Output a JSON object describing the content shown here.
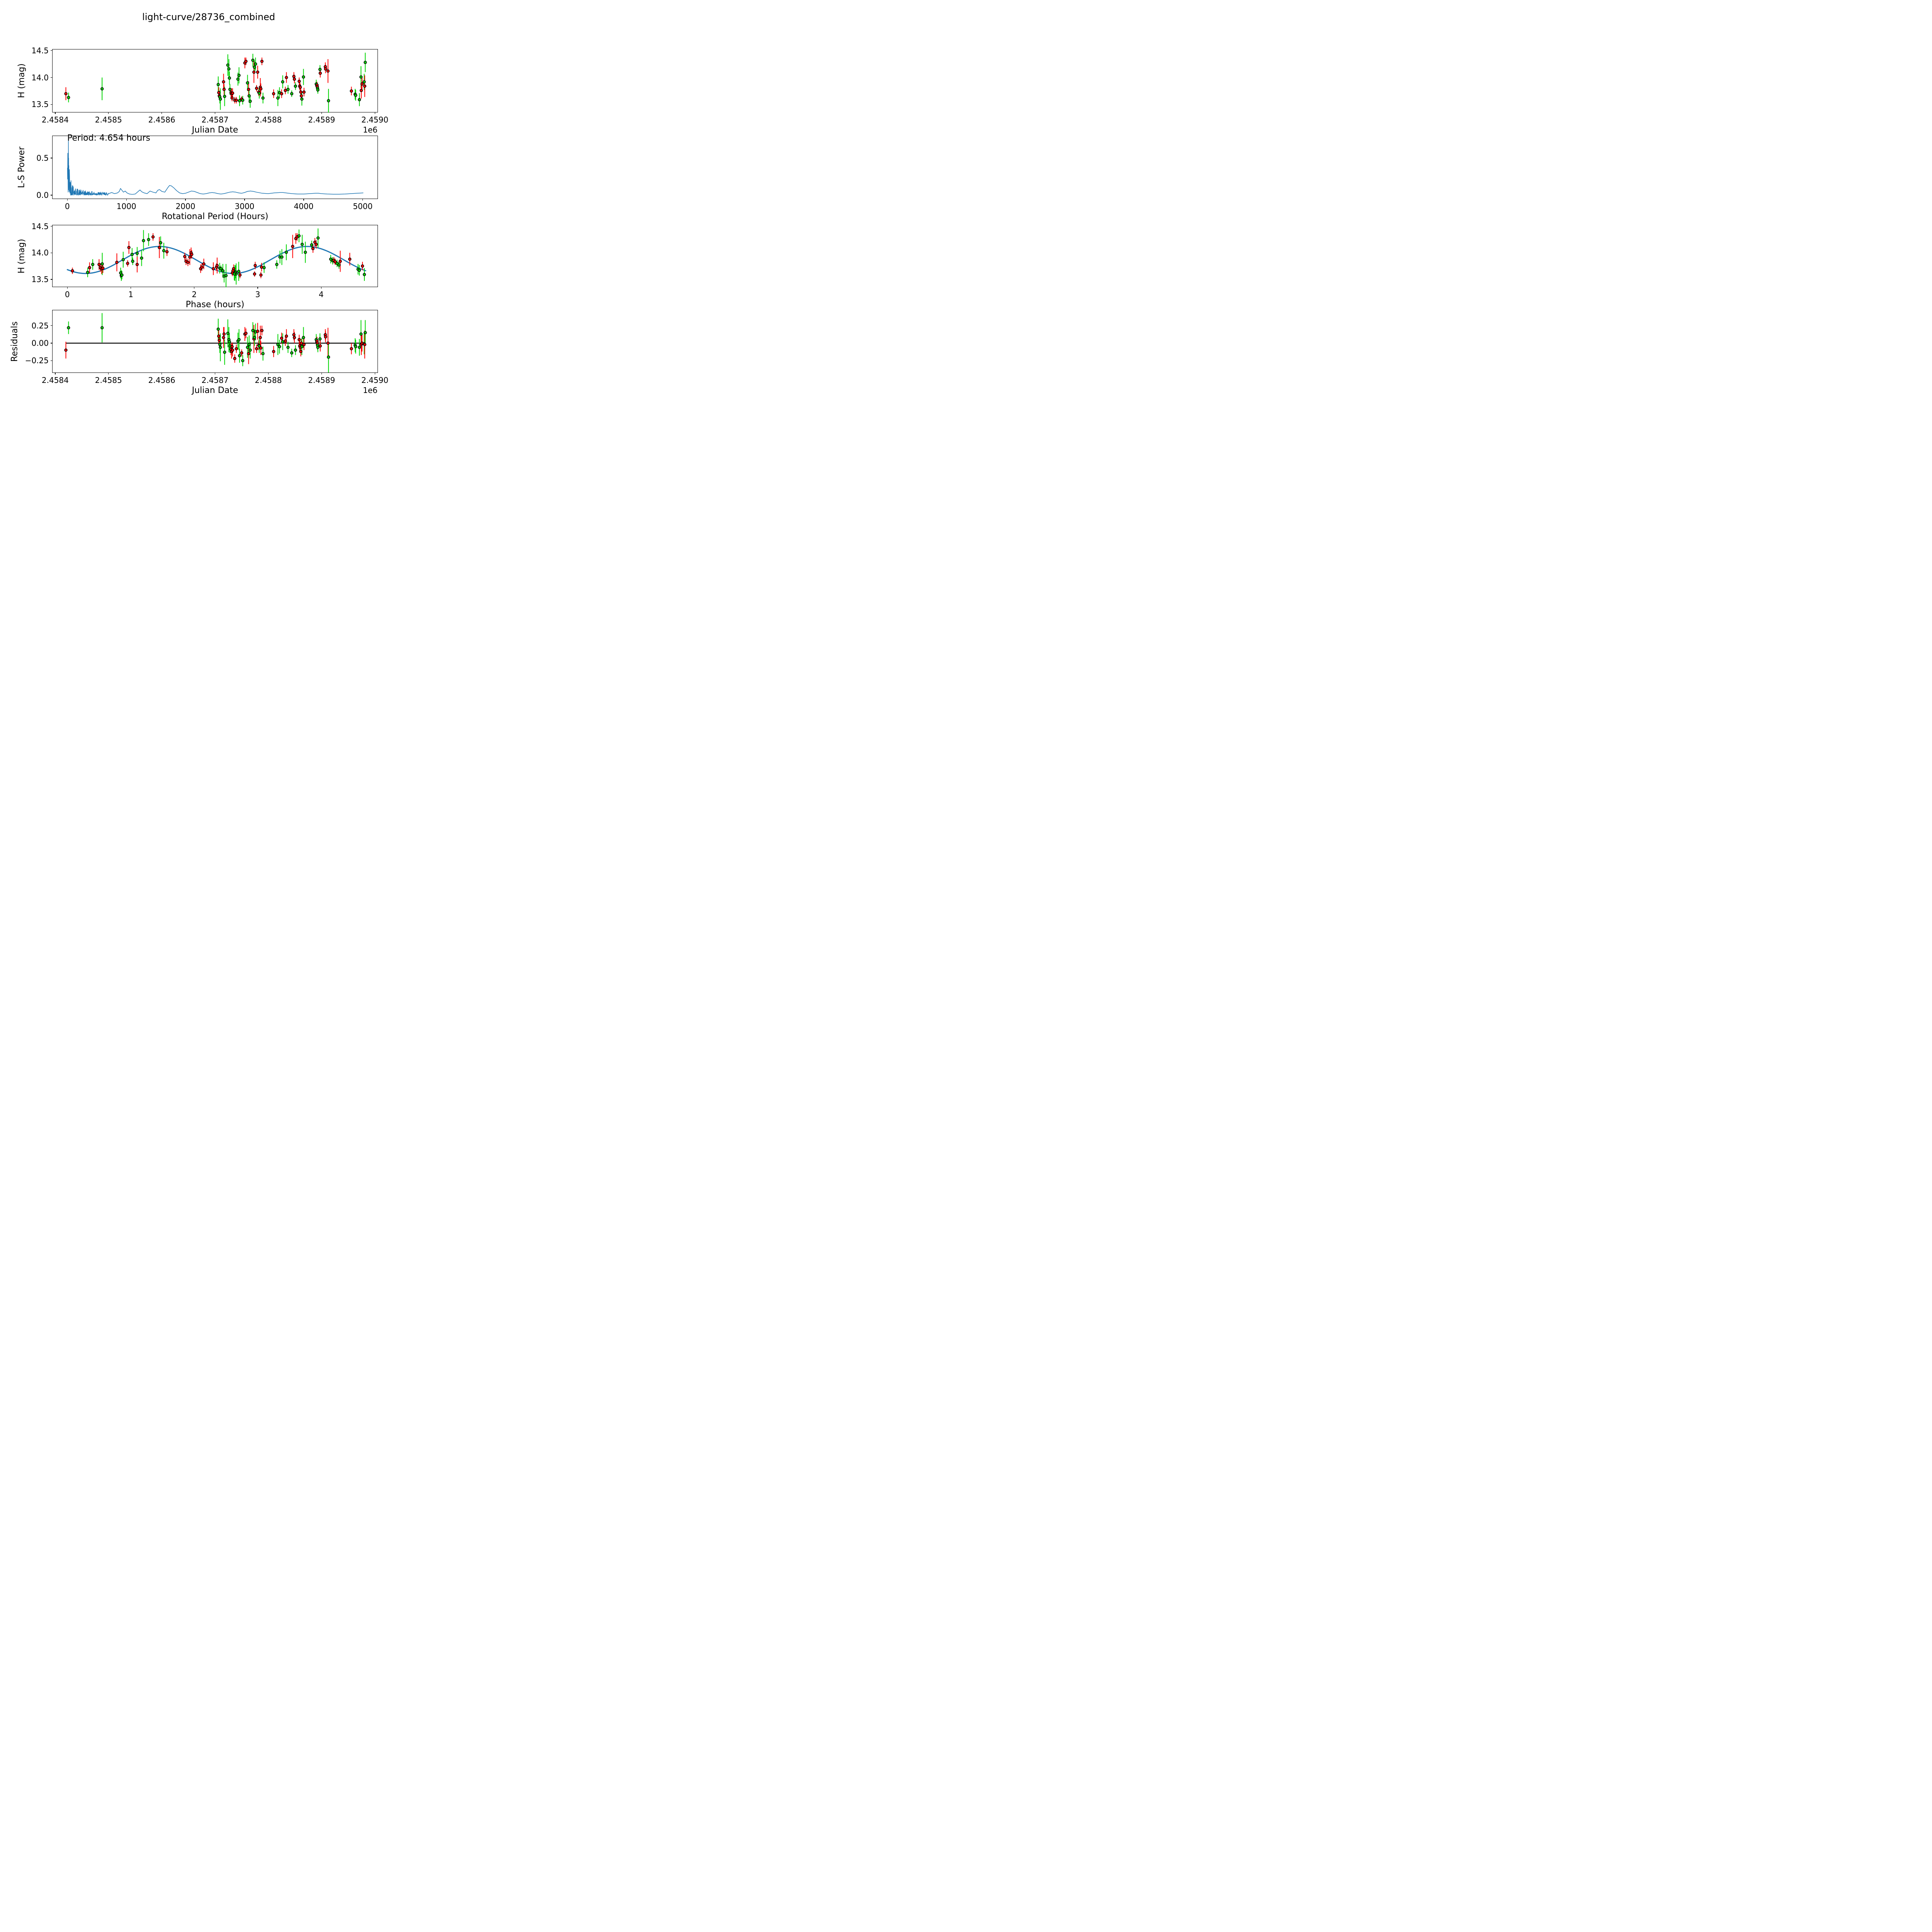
{
  "title": "light-curve/28736_combined",
  "colors": {
    "red": "#ff0000",
    "green": "#00d400",
    "line_blue": "#1f77b4",
    "zero_line": "#000000",
    "axes": "#000000"
  },
  "observations": {
    "fields": [
      "jd_minus_2458400",
      "phase_hours",
      "H_mag",
      "H_err_mag",
      "residual_mag",
      "series_index"
    ],
    "series": [
      "red",
      "green"
    ],
    "points": [
      [
        20,
        2.3,
        13.7,
        0.12,
        -0.1,
        0
      ],
      [
        25,
        0.32,
        13.63,
        0.09,
        0.22,
        1
      ],
      [
        88,
        0.55,
        13.79,
        0.21,
        0.22,
        1
      ],
      [
        306,
        0.88,
        13.87,
        0.15,
        0.2,
        1
      ],
      [
        307,
        0.35,
        13.72,
        0.1,
        0.1,
        0
      ],
      [
        308,
        0.08,
        13.66,
        0.06,
        0.04,
        0
      ],
      [
        309,
        2.65,
        13.64,
        0.12,
        -0.02,
        1
      ],
      [
        310,
        2.66,
        13.6,
        0.2,
        -0.06,
        1
      ],
      [
        316,
        1.93,
        13.92,
        0.15,
        0.08,
        0
      ],
      [
        317,
        0.5,
        13.78,
        0.1,
        0.13,
        0
      ],
      [
        318,
        2.7,
        13.65,
        0.18,
        -0.13,
        1
      ],
      [
        324,
        1.2,
        14.23,
        0.2,
        0.14,
        1
      ],
      [
        326,
        3.7,
        14.16,
        0.18,
        0.05,
        1
      ],
      [
        327,
        1.1,
        13.99,
        0.12,
        0.02,
        1
      ],
      [
        328,
        0.4,
        13.78,
        0.1,
        -0.04,
        1
      ],
      [
        330,
        0.52,
        13.72,
        0.08,
        -0.09,
        0
      ],
      [
        331,
        0.54,
        13.7,
        0.1,
        -0.12,
        0
      ],
      [
        332,
        2.6,
        13.62,
        0.06,
        -0.05,
        0
      ],
      [
        333,
        0.56,
        13.71,
        0.09,
        -0.1,
        0
      ],
      [
        337,
        3.05,
        13.58,
        0.06,
        -0.22,
        0
      ],
      [
        340,
        2.72,
        13.58,
        0.06,
        -0.08,
        0
      ],
      [
        343,
        1.02,
        13.97,
        0.12,
        0.03,
        1
      ],
      [
        345,
        1.52,
        14.04,
        0.15,
        0.05,
        1
      ],
      [
        346,
        0.85,
        13.57,
        0.1,
        -0.18,
        1
      ],
      [
        350,
        2.95,
        13.6,
        0.05,
        -0.14,
        0
      ],
      [
        352,
        0.86,
        13.58,
        0.08,
        -0.25,
        1
      ],
      [
        356,
        3.6,
        14.27,
        0.1,
        0.13,
        0
      ],
      [
        358,
        3.62,
        14.3,
        0.07,
        0.14,
        0
      ],
      [
        361,
        1.17,
        13.9,
        0.15,
        -0.06,
        1
      ],
      [
        363,
        1.1,
        13.78,
        0.15,
        -0.15,
        0
      ],
      [
        364,
        2.45,
        13.66,
        0.13,
        -0.02,
        1
      ],
      [
        366,
        2.47,
        13.56,
        0.12,
        -0.1,
        1
      ],
      [
        371,
        3.65,
        14.32,
        0.12,
        0.18,
        1
      ],
      [
        373,
        1.45,
        14.1,
        0.2,
        0.06,
        0
      ],
      [
        374,
        1.47,
        14.19,
        0.12,
        0.08,
        1
      ],
      [
        376,
        1.28,
        14.25,
        0.12,
        0.16,
        1
      ],
      [
        378,
        0.95,
        13.8,
        0.06,
        -0.08,
        0
      ],
      [
        380,
        0.97,
        14.1,
        0.12,
        0.17,
        0
      ],
      [
        382,
        2.35,
        13.73,
        0.07,
        -0.03,
        0
      ],
      [
        383,
        2.4,
        13.71,
        0.1,
        -0.04,
        1
      ],
      [
        385,
        0.78,
        13.82,
        0.17,
        0.08,
        0
      ],
      [
        386,
        2.15,
        13.79,
        0.1,
        -0.07,
        0
      ],
      [
        388,
        1.35,
        14.3,
        0.07,
        0.18,
        0
      ],
      [
        390,
        0.84,
        13.62,
        0.1,
        -0.15,
        1
      ],
      [
        410,
        2.1,
        13.7,
        0.08,
        -0.12,
        0
      ],
      [
        418,
        2.64,
        13.62,
        0.15,
        -0.02,
        1
      ],
      [
        421,
        3.1,
        13.72,
        0.1,
        -0.05,
        1
      ],
      [
        425,
        2.62,
        13.7,
        0.08,
        0.07,
        0
      ],
      [
        427,
        3.35,
        13.92,
        0.12,
        0.02,
        1
      ],
      [
        432,
        2.96,
        13.76,
        0.07,
        0.03,
        0
      ],
      [
        434,
        1.95,
        14.0,
        0.1,
        0.1,
        0
      ],
      [
        437,
        3.3,
        13.78,
        0.08,
        -0.06,
        1
      ],
      [
        444,
        2.42,
        13.7,
        0.06,
        -0.14,
        1
      ],
      [
        448,
        1.57,
        14.02,
        0.08,
        0.12,
        0
      ],
      [
        449,
        1.96,
        13.97,
        0.08,
        0.08,
        0
      ],
      [
        451,
        1.03,
        13.84,
        0.07,
        -0.1,
        1
      ],
      [
        458,
        1.85,
        13.93,
        0.07,
        0.05,
        0
      ],
      [
        459,
        1.87,
        13.84,
        0.07,
        -0.04,
        0
      ],
      [
        460,
        1.9,
        13.82,
        0.07,
        -0.06,
        0
      ],
      [
        461,
        2.12,
        13.73,
        0.07,
        -0.12,
        0
      ],
      [
        462,
        2.61,
        13.66,
        0.06,
        0.0,
        0
      ],
      [
        463,
        2.63,
        13.6,
        0.12,
        -0.05,
        1
      ],
      [
        466,
        3.45,
        14.01,
        0.15,
        0.08,
        1
      ],
      [
        467,
        3.06,
        13.73,
        0.08,
        -0.02,
        0
      ],
      [
        490,
        4.15,
        13.88,
        0.08,
        0.05,
        1
      ],
      [
        491,
        4.18,
        13.85,
        0.07,
        0.02,
        1
      ],
      [
        491.5,
        4.2,
        13.86,
        0.06,
        0.03,
        0
      ],
      [
        492,
        4.22,
        13.83,
        0.06,
        0.0,
        0
      ],
      [
        492.5,
        4.25,
        13.8,
        0.07,
        -0.03,
        1
      ],
      [
        493,
        4.28,
        13.77,
        0.07,
        -0.06,
        1
      ],
      [
        497,
        3.85,
        14.15,
        0.08,
        0.06,
        1
      ],
      [
        497.5,
        3.87,
        14.08,
        0.08,
        -0.04,
        0
      ],
      [
        507,
        3.9,
        14.2,
        0.08,
        0.12,
        0
      ],
      [
        507.5,
        3.92,
        14.16,
        0.08,
        0.09,
        0
      ],
      [
        512,
        3.55,
        14.12,
        0.22,
        0.0,
        0
      ],
      [
        513,
        2.5,
        13.57,
        0.22,
        -0.2,
        1
      ],
      [
        556,
        4.65,
        13.75,
        0.08,
        -0.08,
        0
      ],
      [
        563,
        4.58,
        13.69,
        0.1,
        -0.03,
        1
      ],
      [
        564,
        4.6,
        13.67,
        0.1,
        -0.05,
        1
      ],
      [
        571,
        4.68,
        13.59,
        0.12,
        -0.06,
        1
      ],
      [
        574,
        3.75,
        14.01,
        0.2,
        0.13,
        1
      ],
      [
        574.5,
        2.36,
        13.76,
        0.15,
        -0.02,
        0
      ],
      [
        576,
        4.45,
        13.88,
        0.12,
        0.0,
        0
      ],
      [
        580,
        3.38,
        13.92,
        0.15,
        -0.01,
        1
      ],
      [
        581,
        4.3,
        13.84,
        0.2,
        -0.02,
        0
      ],
      [
        582,
        3.95,
        14.28,
        0.18,
        0.15,
        1
      ]
    ],
    "jd_base": 2458400
  },
  "chart_data": [
    {
      "type": "scatter",
      "xlabel": "Julian Date",
      "ylabel": "H (mag)",
      "offset_label": "1e6",
      "xlim": [
        2458395,
        2459005
      ],
      "ylim": [
        13.36,
        14.52
      ],
      "xticks": {
        "values": [
          2458400,
          2458500,
          2458600,
          2458700,
          2458800,
          2458900,
          2459000
        ],
        "labels": [
          "2.4584",
          "2.4585",
          "2.4586",
          "2.4587",
          "2.4588",
          "2.4589",
          "2.4590"
        ]
      },
      "yticks": {
        "values": [
          13.5,
          14.0,
          14.5
        ],
        "labels": [
          "13.5",
          "14.0",
          "14.5"
        ]
      },
      "source": "observations",
      "x_field": "jd",
      "y_field": "H_mag",
      "error_bars": true,
      "grid": false,
      "legend": "none"
    },
    {
      "type": "line",
      "xlabel": "Rotational Period (Hours)",
      "ylabel": "L-S Power",
      "annotation": "Period: 4.654 hours",
      "best_period_hours": 4.654,
      "xlim": [
        -250,
        5250
      ],
      "ylim": [
        -0.047,
        0.797
      ],
      "xticks": {
        "values": [
          0,
          1000,
          2000,
          3000,
          4000,
          5000
        ],
        "labels": [
          "0",
          "1000",
          "2000",
          "3000",
          "4000",
          "5000"
        ]
      },
      "yticks": {
        "values": [
          0.0,
          0.5
        ],
        "labels": [
          "0.0",
          "0.5"
        ]
      },
      "peak": {
        "x": 18,
        "y": 0.755
      },
      "noise_spikes": {
        "x_start": 2,
        "x_end": 700,
        "step": 3,
        "seed": 42,
        "envelope": {
          "floor": 0.028,
          "a1": 0.75,
          "tau1": 40,
          "a2": 0.09,
          "tau2": 300
        },
        "forced": [
          [
            15,
            0.42
          ],
          [
            18,
            0.755
          ],
          [
            22,
            0.5
          ]
        ]
      },
      "curve_smooth": [
        [
          700,
          0.02
        ],
        [
          750,
          0.035
        ],
        [
          800,
          0.02
        ],
        [
          850,
          0.03
        ],
        [
          880,
          0.05
        ],
        [
          900,
          0.09
        ],
        [
          920,
          0.07
        ],
        [
          950,
          0.04
        ],
        [
          980,
          0.055
        ],
        [
          1010,
          0.03
        ],
        [
          1050,
          0.015
        ],
        [
          1100,
          0.01
        ],
        [
          1150,
          0.015
        ],
        [
          1200,
          0.05
        ],
        [
          1230,
          0.07
        ],
        [
          1260,
          0.045
        ],
        [
          1300,
          0.03
        ],
        [
          1350,
          0.02
        ],
        [
          1400,
          0.055
        ],
        [
          1450,
          0.04
        ],
        [
          1500,
          0.03
        ],
        [
          1530,
          0.065
        ],
        [
          1560,
          0.075
        ],
        [
          1600,
          0.05
        ],
        [
          1650,
          0.04
        ],
        [
          1700,
          0.1
        ],
        [
          1730,
          0.13
        ],
        [
          1760,
          0.125
        ],
        [
          1800,
          0.1
        ],
        [
          1850,
          0.06
        ],
        [
          1900,
          0.03
        ],
        [
          1950,
          0.02
        ],
        [
          2000,
          0.025
        ],
        [
          2050,
          0.04
        ],
        [
          2100,
          0.055
        ],
        [
          2150,
          0.05
        ],
        [
          2200,
          0.035
        ],
        [
          2250,
          0.02
        ],
        [
          2300,
          0.015
        ],
        [
          2350,
          0.02
        ],
        [
          2400,
          0.03
        ],
        [
          2450,
          0.035
        ],
        [
          2500,
          0.03
        ],
        [
          2550,
          0.02
        ],
        [
          2600,
          0.015
        ],
        [
          2650,
          0.02
        ],
        [
          2700,
          0.03
        ],
        [
          2750,
          0.04
        ],
        [
          2800,
          0.045
        ],
        [
          2850,
          0.04
        ],
        [
          2900,
          0.03
        ],
        [
          2950,
          0.025
        ],
        [
          3000,
          0.035
        ],
        [
          3050,
          0.05
        ],
        [
          3100,
          0.055
        ],
        [
          3150,
          0.05
        ],
        [
          3200,
          0.04
        ],
        [
          3300,
          0.025
        ],
        [
          3400,
          0.02
        ],
        [
          3500,
          0.03
        ],
        [
          3600,
          0.035
        ],
        [
          3650,
          0.035
        ],
        [
          3700,
          0.03
        ],
        [
          3800,
          0.02
        ],
        [
          3900,
          0.015
        ],
        [
          4000,
          0.015
        ],
        [
          4100,
          0.02
        ],
        [
          4200,
          0.025
        ],
        [
          4250,
          0.025
        ],
        [
          4300,
          0.02
        ],
        [
          4400,
          0.015
        ],
        [
          4500,
          0.012
        ],
        [
          4600,
          0.012
        ],
        [
          4700,
          0.015
        ],
        [
          4800,
          0.02
        ],
        [
          4900,
          0.025
        ],
        [
          5010,
          0.03
        ]
      ],
      "grid": false,
      "legend": "none"
    },
    {
      "type": "scatter",
      "xlabel": "Phase (hours)",
      "ylabel": "H (mag)",
      "xlim": [
        -0.233,
        4.887
      ],
      "ylim": [
        13.36,
        14.52
      ],
      "xticks": {
        "values": [
          0,
          1,
          2,
          3,
          4
        ],
        "labels": [
          "0",
          "1",
          "2",
          "3",
          "4"
        ]
      },
      "yticks": {
        "values": [
          13.5,
          14.0,
          14.5
        ],
        "labels": [
          "13.5",
          "14.0",
          "14.5"
        ]
      },
      "source": "observations",
      "x_field": "phase_hours",
      "y_field": "H_mag",
      "error_bars": true,
      "fit_model": {
        "shape": "double_peaked_sinusoid",
        "mean": 13.865,
        "amplitude": 0.255,
        "period_hours": 4.654,
        "half_period_hours": 2.327,
        "peak_phase_hours": 1.45,
        "x_range": [
          0,
          4.7
        ]
      },
      "grid": false,
      "legend": "none"
    },
    {
      "type": "scatter",
      "xlabel": "Julian Date",
      "ylabel": "Residuals",
      "offset_label": "1e6",
      "xlim": [
        2458395,
        2459005
      ],
      "ylim": [
        -0.42,
        0.47
      ],
      "xticks": {
        "values": [
          2458400,
          2458500,
          2458600,
          2458700,
          2458800,
          2458900,
          2459000
        ],
        "labels": [
          "2.4584",
          "2.4585",
          "2.4586",
          "2.4587",
          "2.4588",
          "2.4589",
          "2.4590"
        ]
      },
      "yticks": {
        "values": [
          -0.25,
          0.0,
          0.25
        ],
        "labels": [
          "−0.25",
          "0.00",
          "0.25"
        ]
      },
      "source": "observations",
      "x_field": "jd",
      "y_field": "residual_mag",
      "error_bars": true,
      "zero_line": {
        "y": 0,
        "x_start": 2458420,
        "x_end": 2458982
      },
      "grid": false,
      "legend": "none"
    }
  ]
}
